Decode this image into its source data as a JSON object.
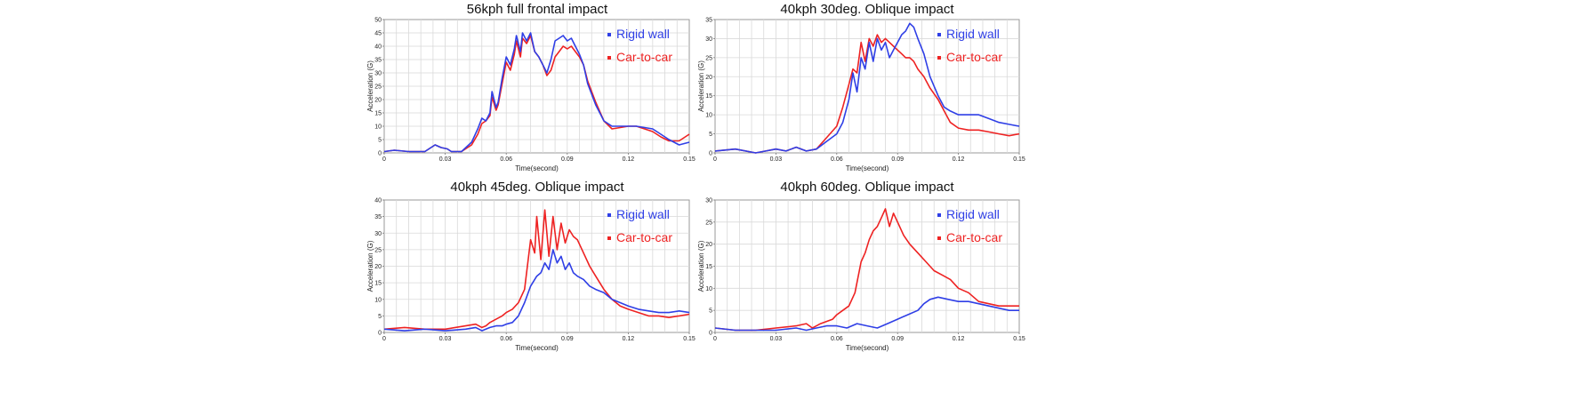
{
  "chart_data": [
    {
      "type": "line",
      "title": "56kph full frontal impact",
      "xlabel": "Time(second)",
      "ylabel": "Acceleration (G)",
      "xlim": [
        0,
        0.15
      ],
      "ylim": [
        0,
        50
      ],
      "xticks": [
        "0",
        "0.03",
        "0.06",
        "0.09",
        "0.12",
        "0.15"
      ],
      "yticks": [
        "0",
        "5",
        "10",
        "15",
        "20",
        "25",
        "30",
        "35",
        "40",
        "45",
        "50"
      ],
      "grid": true,
      "legend_position": "top-right",
      "series": [
        {
          "name": "Rigid wall",
          "color": "#2f3fe6",
          "x": [
            0,
            0.005,
            0.012,
            0.02,
            0.025,
            0.028,
            0.031,
            0.033,
            0.038,
            0.043,
            0.046,
            0.048,
            0.05,
            0.052,
            0.053,
            0.055,
            0.056,
            0.058,
            0.06,
            0.062,
            0.064,
            0.065,
            0.067,
            0.068,
            0.07,
            0.072,
            0.074,
            0.076,
            0.078,
            0.08,
            0.082,
            0.084,
            0.086,
            0.088,
            0.09,
            0.092,
            0.094,
            0.096,
            0.098,
            0.1,
            0.104,
            0.108,
            0.112,
            0.116,
            0.12,
            0.124,
            0.128,
            0.132,
            0.136,
            0.14,
            0.145,
            0.15
          ],
          "y": [
            0.5,
            1,
            0.5,
            0.5,
            3,
            2,
            1.5,
            0.5,
            0.5,
            4,
            9,
            13,
            12,
            15,
            23,
            17,
            19,
            28,
            36,
            33,
            39,
            44,
            38,
            45,
            42,
            45,
            38,
            36,
            33,
            30,
            35,
            42,
            43,
            44,
            42,
            43,
            40,
            37,
            33,
            26,
            18,
            12,
            10,
            10,
            10,
            10,
            9.5,
            9,
            7,
            5,
            3,
            4
          ]
        },
        {
          "name": "Car-to-car",
          "color": "#ee2222",
          "x": [
            0,
            0.005,
            0.012,
            0.02,
            0.025,
            0.028,
            0.031,
            0.033,
            0.038,
            0.043,
            0.046,
            0.048,
            0.05,
            0.052,
            0.053,
            0.055,
            0.056,
            0.058,
            0.06,
            0.062,
            0.064,
            0.065,
            0.067,
            0.068,
            0.07,
            0.072,
            0.074,
            0.076,
            0.078,
            0.08,
            0.082,
            0.084,
            0.086,
            0.088,
            0.09,
            0.092,
            0.094,
            0.096,
            0.098,
            0.1,
            0.104,
            0.108,
            0.112,
            0.116,
            0.12,
            0.124,
            0.128,
            0.132,
            0.136,
            0.14,
            0.145,
            0.15
          ],
          "y": [
            0.5,
            1,
            0.5,
            0.5,
            3,
            2,
            1.5,
            0.5,
            0.5,
            3,
            7,
            11,
            12,
            14,
            21,
            16,
            18,
            26,
            34,
            31,
            37,
            42,
            36,
            43,
            41,
            44,
            38,
            36,
            33,
            29,
            31,
            36,
            38,
            40,
            39,
            40,
            38,
            36,
            33,
            27,
            19,
            12,
            9,
            9.5,
            10,
            10,
            9,
            8,
            6,
            4.5,
            4.5,
            7
          ]
        }
      ]
    },
    {
      "type": "line",
      "title": "40kph 30deg. Oblique impact",
      "xlabel": "Time(second)",
      "ylabel": "Acceleration (G)",
      "xlim": [
        0,
        0.15
      ],
      "ylim": [
        0,
        35
      ],
      "xticks": [
        "0",
        "0.03",
        "0.06",
        "0.09",
        "0.12",
        "0.15"
      ],
      "yticks": [
        "0",
        "5",
        "10",
        "15",
        "20",
        "25",
        "30",
        "35"
      ],
      "grid": true,
      "legend_position": "top-right",
      "series": [
        {
          "name": "Rigid wall",
          "color": "#2f3fe6",
          "x": [
            0,
            0.01,
            0.02,
            0.025,
            0.03,
            0.035,
            0.04,
            0.045,
            0.05,
            0.055,
            0.06,
            0.063,
            0.066,
            0.068,
            0.07,
            0.072,
            0.074,
            0.076,
            0.078,
            0.08,
            0.082,
            0.084,
            0.086,
            0.088,
            0.09,
            0.092,
            0.094,
            0.096,
            0.098,
            0.1,
            0.103,
            0.106,
            0.11,
            0.113,
            0.116,
            0.12,
            0.125,
            0.13,
            0.135,
            0.14,
            0.145,
            0.15
          ],
          "y": [
            0.5,
            1,
            0,
            0.5,
            1,
            0.5,
            1.5,
            0.5,
            1,
            3,
            5,
            8,
            14,
            21,
            16,
            25,
            22,
            29,
            24,
            30,
            27,
            29,
            25,
            27,
            29,
            31,
            32,
            34,
            33,
            30,
            26,
            20,
            15,
            12,
            11,
            10,
            10,
            10,
            9,
            8,
            7.5,
            7
          ]
        },
        {
          "name": "Car-to-car",
          "color": "#ee2222",
          "x": [
            0,
            0.01,
            0.02,
            0.025,
            0.03,
            0.035,
            0.04,
            0.045,
            0.05,
            0.055,
            0.06,
            0.063,
            0.066,
            0.068,
            0.07,
            0.072,
            0.074,
            0.076,
            0.078,
            0.08,
            0.082,
            0.084,
            0.086,
            0.088,
            0.09,
            0.092,
            0.094,
            0.096,
            0.098,
            0.1,
            0.103,
            0.106,
            0.11,
            0.113,
            0.116,
            0.12,
            0.125,
            0.13,
            0.135,
            0.14,
            0.145,
            0.15
          ],
          "y": [
            0.5,
            1,
            0,
            0.5,
            1,
            0.5,
            1.5,
            0.5,
            1,
            4,
            7,
            12,
            18,
            22,
            21,
            29,
            24,
            30,
            28,
            31,
            29,
            30,
            29,
            28,
            27,
            26,
            25,
            25,
            24,
            22,
            20,
            17,
            14,
            11,
            8,
            6.5,
            6,
            6,
            5.5,
            5,
            4.5,
            5
          ]
        }
      ]
    },
    {
      "type": "line",
      "title": "40kph 45deg. Oblique impact",
      "xlabel": "Time(second)",
      "ylabel": "Acceleration (G)",
      "xlim": [
        0,
        0.15
      ],
      "ylim": [
        0,
        40
      ],
      "xticks": [
        "0",
        "0.03",
        "0.06",
        "0.09",
        "0.12",
        "0.15"
      ],
      "yticks": [
        "0",
        "5",
        "10",
        "15",
        "20",
        "25",
        "30",
        "35",
        "40"
      ],
      "grid": true,
      "legend_position": "top-right",
      "series": [
        {
          "name": "Rigid wall",
          "color": "#2f3fe6",
          "x": [
            0,
            0.01,
            0.02,
            0.03,
            0.04,
            0.045,
            0.048,
            0.05,
            0.052,
            0.055,
            0.058,
            0.06,
            0.063,
            0.066,
            0.069,
            0.072,
            0.075,
            0.077,
            0.079,
            0.081,
            0.083,
            0.085,
            0.087,
            0.089,
            0.091,
            0.093,
            0.095,
            0.098,
            0.101,
            0.104,
            0.108,
            0.112,
            0.116,
            0.12,
            0.125,
            0.13,
            0.135,
            0.14,
            0.145,
            0.15
          ],
          "y": [
            1,
            0.5,
            1,
            0.5,
            1,
            1.5,
            0.5,
            1,
            1.5,
            2,
            2,
            2.5,
            3,
            5,
            9,
            14,
            17,
            18,
            21,
            19,
            25,
            21,
            23,
            19,
            21,
            18,
            17,
            16,
            14,
            13,
            12,
            10,
            9,
            8,
            7,
            6.5,
            6,
            6,
            6.5,
            6
          ]
        },
        {
          "name": "Car-to-car",
          "color": "#ee2222",
          "x": [
            0,
            0.01,
            0.02,
            0.03,
            0.04,
            0.045,
            0.048,
            0.05,
            0.052,
            0.055,
            0.058,
            0.06,
            0.063,
            0.066,
            0.069,
            0.072,
            0.074,
            0.075,
            0.077,
            0.079,
            0.081,
            0.083,
            0.085,
            0.087,
            0.089,
            0.091,
            0.093,
            0.095,
            0.098,
            0.101,
            0.104,
            0.108,
            0.112,
            0.116,
            0.12,
            0.125,
            0.13,
            0.135,
            0.14,
            0.145,
            0.15
          ],
          "y": [
            1,
            1.5,
            1,
            1,
            2,
            2.5,
            1.5,
            2,
            3,
            4,
            5,
            6,
            7,
            9,
            13,
            28,
            24,
            35,
            22,
            37,
            23,
            35,
            25,
            33,
            27,
            31,
            29,
            28,
            24,
            20,
            17,
            13,
            10,
            8,
            7,
            6,
            5,
            5,
            4.5,
            5,
            5.5
          ]
        }
      ]
    },
    {
      "type": "line",
      "title": "40kph 60deg. Oblique impact",
      "xlabel": "Time(second)",
      "ylabel": "Acceleration (G)",
      "xlim": [
        0,
        0.15
      ],
      "ylim": [
        0,
        30
      ],
      "xticks": [
        "0",
        "0.03",
        "0.06",
        "0.09",
        "0.12",
        "0.15"
      ],
      "yticks": [
        "0",
        "5",
        "10",
        "15",
        "20",
        "25",
        "30"
      ],
      "grid": true,
      "legend_position": "top-right",
      "series": [
        {
          "name": "Rigid wall",
          "color": "#2f3fe6",
          "x": [
            0,
            0.01,
            0.02,
            0.03,
            0.04,
            0.045,
            0.05,
            0.055,
            0.06,
            0.065,
            0.07,
            0.075,
            0.08,
            0.085,
            0.09,
            0.095,
            0.1,
            0.103,
            0.106,
            0.11,
            0.115,
            0.12,
            0.125,
            0.13,
            0.135,
            0.14,
            0.145,
            0.15
          ],
          "y": [
            1,
            0.5,
            0.5,
            0.5,
            1,
            0.5,
            1,
            1.5,
            1.5,
            1,
            2,
            1.5,
            1,
            2,
            3,
            4,
            5,
            6.5,
            7.5,
            8,
            7.5,
            7,
            7,
            6.5,
            6,
            5.5,
            5,
            5
          ]
        },
        {
          "name": "Car-to-car",
          "color": "#ee2222",
          "x": [
            0,
            0.01,
            0.02,
            0.03,
            0.04,
            0.045,
            0.048,
            0.05,
            0.052,
            0.055,
            0.058,
            0.06,
            0.063,
            0.066,
            0.069,
            0.072,
            0.074,
            0.076,
            0.078,
            0.08,
            0.082,
            0.084,
            0.086,
            0.088,
            0.09,
            0.093,
            0.096,
            0.1,
            0.104,
            0.108,
            0.112,
            0.116,
            0.12,
            0.125,
            0.13,
            0.135,
            0.14,
            0.145,
            0.15
          ],
          "y": [
            1,
            0.5,
            0.5,
            1,
            1.5,
            2,
            1,
            1.5,
            2,
            2.5,
            3,
            4,
            5,
            6,
            9,
            16,
            18,
            21,
            23,
            24,
            26,
            28,
            24,
            27,
            25,
            22,
            20,
            18,
            16,
            14,
            13,
            12,
            10,
            9,
            7,
            6.5,
            6,
            6,
            6
          ]
        }
      ]
    }
  ]
}
